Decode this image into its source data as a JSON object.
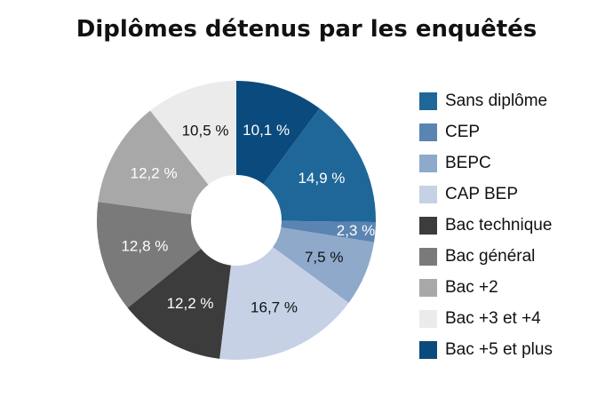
{
  "chart_data": {
    "type": "pie",
    "title": "Diplômes détenus par les enquêtés",
    "donut": true,
    "legend_position": "right",
    "slices": [
      {
        "name": "Bac +5 et plus",
        "value": 10.1,
        "label": "10,1 %",
        "color": "#0b4a7c",
        "text_color": "#ffffff"
      },
      {
        "name": "Sans diplôme",
        "value": 14.9,
        "label": "14,9 %",
        "color": "#1f6798",
        "text_color": "#ffffff"
      },
      {
        "name": "CEP",
        "value": 2.3,
        "label": "2,3 %",
        "color": "#5a84b1",
        "text_color": "#ffffff"
      },
      {
        "name": "BEPC",
        "value": 7.5,
        "label": "7,5 %",
        "color": "#8fa9cb",
        "text_color": "#111111"
      },
      {
        "name": "CAP BEP",
        "value": 16.7,
        "label": "16,7 %",
        "color": "#c6d1e6",
        "text_color": "#111111"
      },
      {
        "name": "Bac technique",
        "value": 12.2,
        "label": "12,2 %",
        "color": "#3c3c3c",
        "text_color": "#ffffff"
      },
      {
        "name": "Bac général",
        "value": 12.8,
        "label": "12,8 %",
        "color": "#7a7a7a",
        "text_color": "#ffffff"
      },
      {
        "name": "Bac +2",
        "value": 12.2,
        "label": "12,2 %",
        "color": "#a8a8a8",
        "text_color": "#ffffff"
      },
      {
        "name": "Bac +3 et +4",
        "value": 10.5,
        "label": "10,5 %",
        "color": "#ebebeb",
        "text_color": "#111111"
      }
    ],
    "legend": [
      {
        "label": "Sans diplôme",
        "color": "#1f6798"
      },
      {
        "label": "CEP",
        "color": "#5a84b1"
      },
      {
        "label": "BEPC",
        "color": "#8fa9cb"
      },
      {
        "label": "CAP BEP",
        "color": "#c6d1e6"
      },
      {
        "label": "Bac technique",
        "color": "#3c3c3c"
      },
      {
        "label": "Bac général",
        "color": "#7a7a7a"
      },
      {
        "label": "Bac +2",
        "color": "#a8a8a8"
      },
      {
        "label": "Bac +3 et +4",
        "color": "#ebebeb"
      },
      {
        "label": "Bac +5 et plus",
        "color": "#0b4a7c"
      }
    ]
  }
}
